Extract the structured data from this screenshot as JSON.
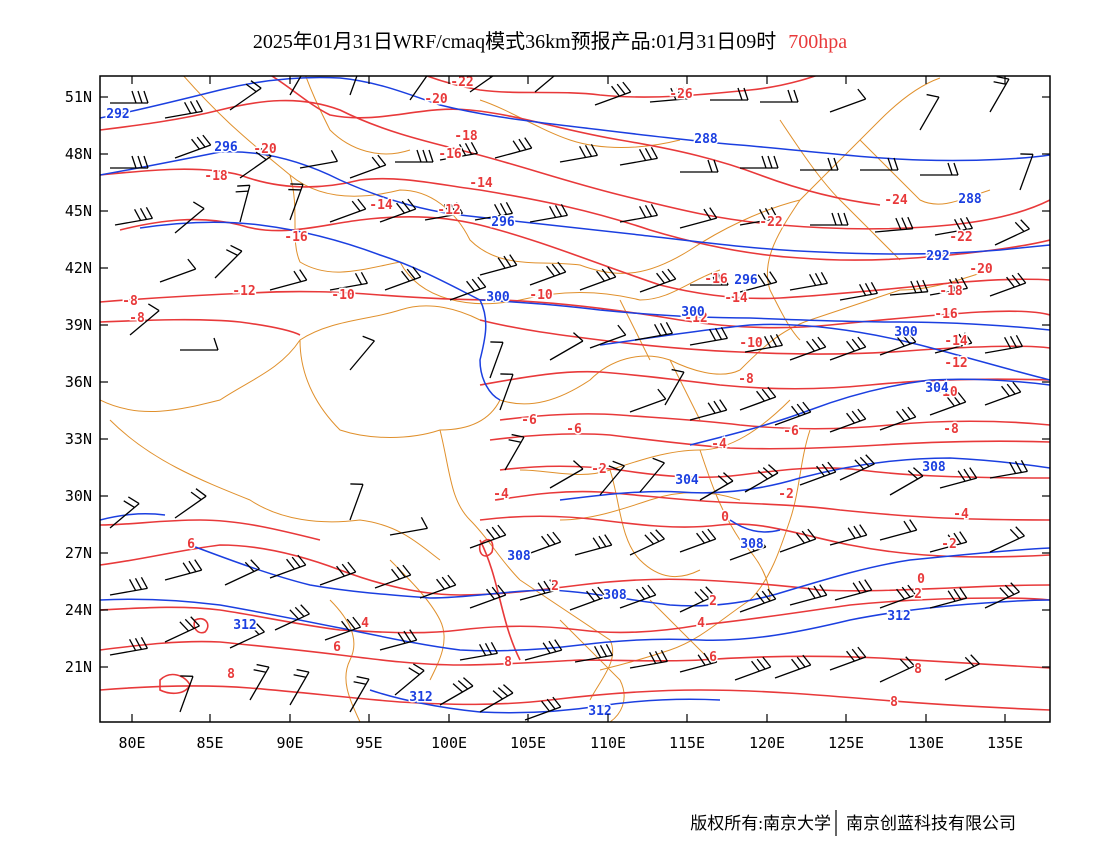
{
  "title": {
    "main": "2025年01月31日WRF/cmaq模式36km预报产品:01月31日09时",
    "level": "700hpa"
  },
  "colors": {
    "temperature": "#e8393a",
    "height": "#1b3fe0",
    "border": "#e0902c",
    "wind": "#000000",
    "frame": "#000000"
  },
  "axes": {
    "y_ticks": [
      "51N",
      "48N",
      "45N",
      "42N",
      "39N",
      "36N",
      "33N",
      "30N",
      "27N",
      "24N",
      "21N"
    ],
    "x_ticks": [
      "80E",
      "85E",
      "90E",
      "95E",
      "100E",
      "105E",
      "110E",
      "115E",
      "120E",
      "125E",
      "130E",
      "135E"
    ]
  },
  "temperature_labels": [
    "-22",
    "-20",
    "-20",
    "-26",
    "-18",
    "-18",
    "-16",
    "-16",
    "-14",
    "-14",
    "-12",
    "-12",
    "-10",
    "-10",
    "-8",
    "-8",
    "-24",
    "-22",
    "-22",
    "-20",
    "-18",
    "-16",
    "-16",
    "-14",
    "-14",
    "-12",
    "-12",
    "-10",
    "-10",
    "-8",
    "-8",
    "-6",
    "-6",
    "-6",
    "-4",
    "-4",
    "-4",
    "-2",
    "-2",
    "-2",
    "0",
    "0",
    "2",
    "2",
    "2",
    "4",
    "4",
    "6",
    "6",
    "6",
    "8",
    "8",
    "8",
    "8"
  ],
  "height_labels": [
    "292",
    "296",
    "288",
    "288",
    "296",
    "292",
    "296",
    "300",
    "300",
    "300",
    "304",
    "304",
    "308",
    "308",
    "308",
    "308",
    "312",
    "312",
    "312",
    "312"
  ],
  "footer": {
    "copyright": "版权所有:南京大学",
    "company": "南京创蓝科技有限公司"
  }
}
